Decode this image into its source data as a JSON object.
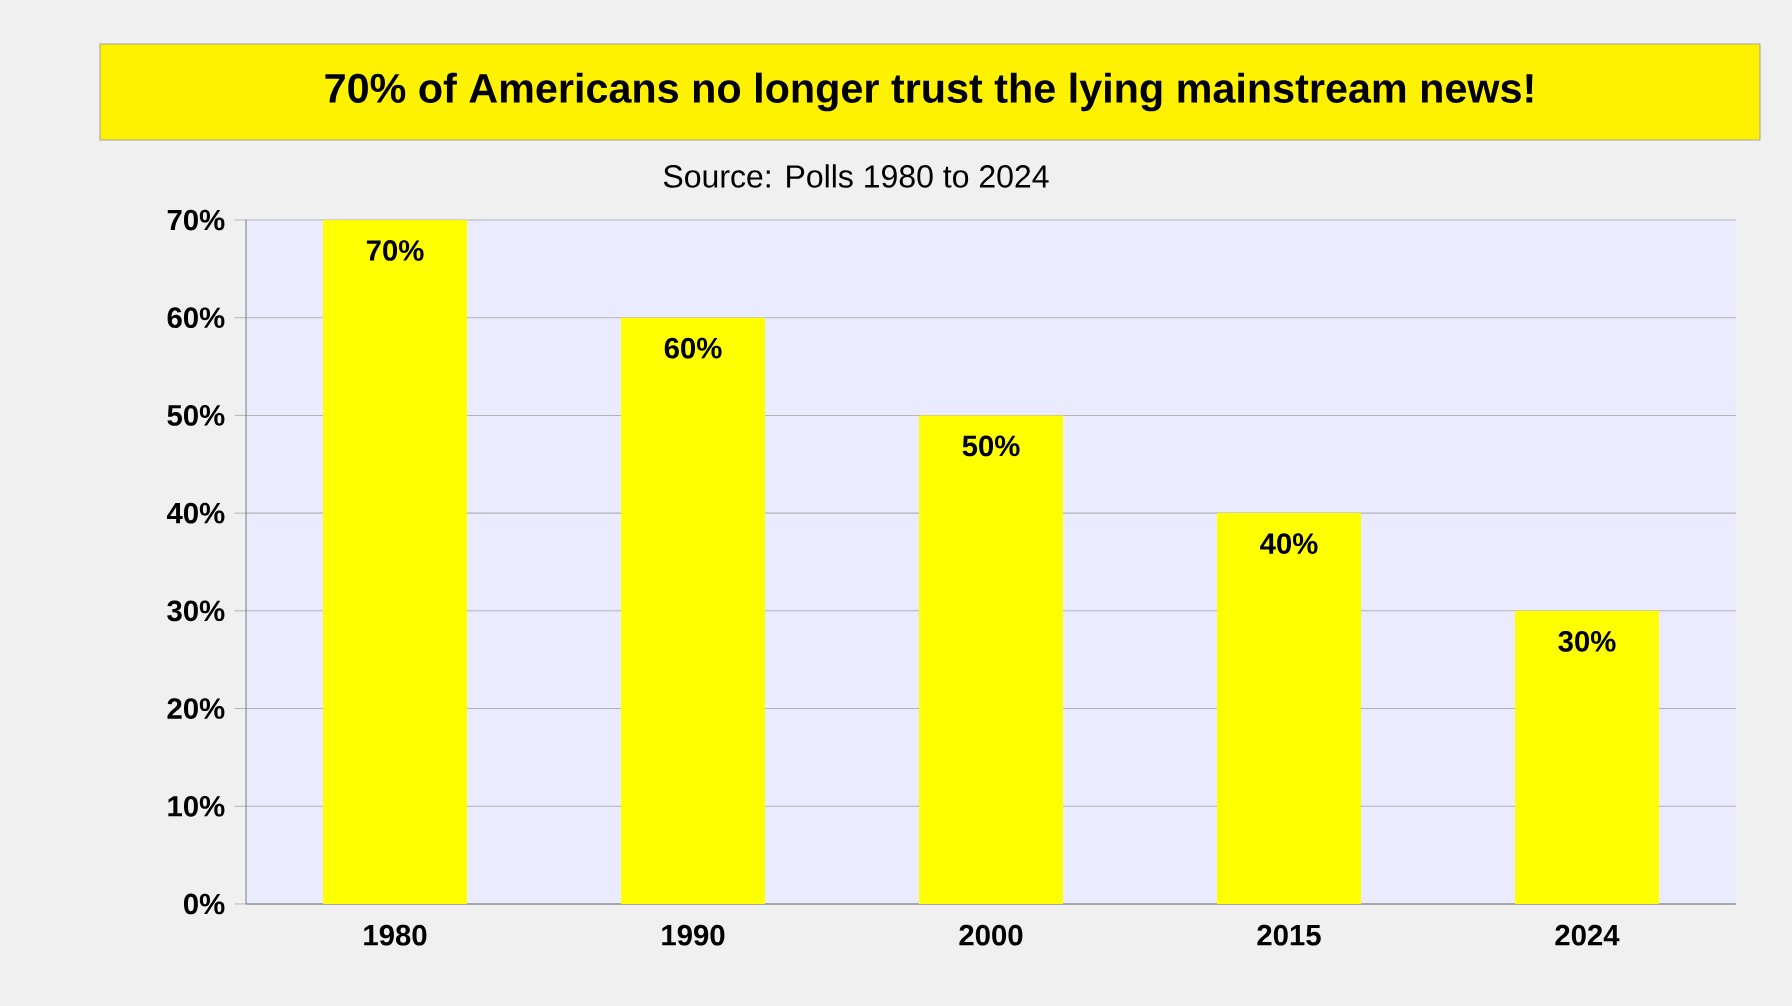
{
  "chart_data": {
    "type": "bar",
    "title": "70% of Americans no longer trust the lying mainstream news!",
    "subtitle": "Source: Polls 1980 to 2024",
    "categories": [
      "1980",
      "1990",
      "2000",
      "2015",
      "2024"
    ],
    "values": [
      70,
      60,
      50,
      40,
      30
    ],
    "value_labels": [
      "70%",
      "60%",
      "50%",
      "40%",
      "30%"
    ],
    "color": "#ffff00",
    "ylim": [
      0,
      70
    ],
    "yticks": [
      {
        "value": 0,
        "label": "0%"
      },
      {
        "value": 10,
        "label": "10%"
      },
      {
        "value": 20,
        "label": "20%"
      },
      {
        "value": 30,
        "label": "30%"
      },
      {
        "value": 40,
        "label": "40%"
      },
      {
        "value": 50,
        "label": "50%"
      },
      {
        "value": 60,
        "label": "60%"
      },
      {
        "value": 70,
        "label": "70%"
      }
    ],
    "grid": "y"
  }
}
